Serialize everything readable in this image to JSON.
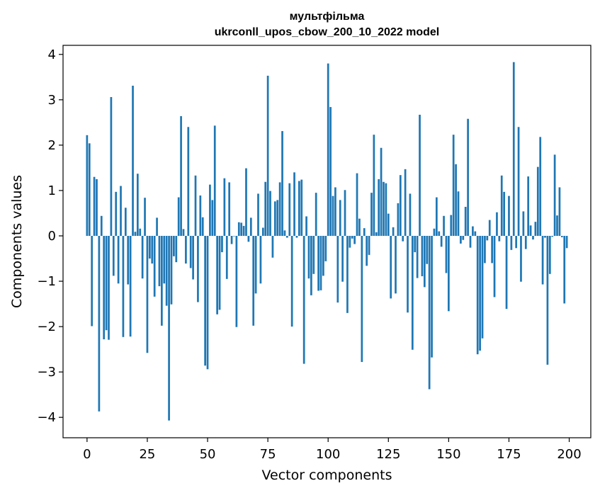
{
  "chart_data": {
    "type": "bar",
    "title_line1": "мультфільма",
    "title_line2": "ukrconll_upos_cbow_200_10_2022 model",
    "xlabel": "Vector components",
    "ylabel": "Components values",
    "xlim": [
      -9.95,
      208.95
    ],
    "ylim": [
      -4.45,
      4.2
    ],
    "xticks": [
      0,
      25,
      50,
      75,
      100,
      125,
      150,
      175,
      200
    ],
    "yticks": [
      -4,
      -3,
      -2,
      -1,
      0,
      1,
      2,
      3,
      4
    ],
    "xtick_labels": [
      "0",
      "25",
      "50",
      "75",
      "100",
      "125",
      "150",
      "175",
      "200"
    ],
    "ytick_labels": [
      "−4",
      "−3",
      "−2",
      "−1",
      "0",
      "1",
      "2",
      "3",
      "4"
    ],
    "bar_color": "#1f77b4",
    "grid": false,
    "legend": "none",
    "values": [
      2.22,
      2.04,
      -1.99,
      1.3,
      1.25,
      -3.87,
      0.44,
      -2.28,
      -2.08,
      -2.29,
      3.06,
      -0.88,
      0.97,
      -1.05,
      1.1,
      -2.23,
      0.62,
      -1.07,
      -2.22,
      3.31,
      0.09,
      1.37,
      0.16,
      -0.94,
      0.84,
      -2.58,
      -0.5,
      -0.61,
      -1.34,
      0.4,
      -1.11,
      -1.98,
      -1.05,
      -1.54,
      -4.07,
      -1.51,
      -0.45,
      -0.58,
      0.85,
      2.64,
      0.15,
      -0.61,
      2.4,
      -0.71,
      -0.96,
      1.33,
      -1.46,
      0.89,
      0.41,
      -2.86,
      -2.94,
      1.13,
      0.79,
      2.43,
      -1.73,
      -1.63,
      -0.36,
      1.27,
      -0.95,
      1.18,
      -0.18,
      -0.01,
      -2.01,
      0.3,
      0.29,
      0.22,
      1.49,
      -0.13,
      0.4,
      -1.98,
      -1.27,
      0.93,
      -1.05,
      0.18,
      1.19,
      3.53,
      0.99,
      -0.48,
      0.76,
      0.79,
      1.18,
      2.31,
      0.12,
      -0.04,
      1.16,
      -2.0,
      1.4,
      -0.04,
      1.21,
      1.24,
      -2.82,
      0.43,
      -0.94,
      -1.31,
      -0.84,
      0.95,
      -1.21,
      -1.2,
      -0.88,
      -0.56,
      3.8,
      2.84,
      0.88,
      1.07,
      -1.47,
      0.79,
      -1.01,
      1.01,
      -1.7,
      -0.26,
      -0.06,
      -0.18,
      1.38,
      0.38,
      -2.78,
      0.17,
      -0.66,
      -0.42,
      0.95,
      2.23,
      0.08,
      1.25,
      1.94,
      1.19,
      1.16,
      0.49,
      -1.38,
      0.19,
      -1.27,
      0.72,
      1.34,
      -0.12,
      1.47,
      -1.69,
      0.93,
      -2.51,
      -0.36,
      -0.93,
      2.67,
      -0.89,
      -1.13,
      -0.62,
      -3.38,
      -2.68,
      0.16,
      0.85,
      0.1,
      -0.24,
      0.44,
      -0.82,
      -1.66,
      0.46,
      2.23,
      1.58,
      0.98,
      -0.17,
      -0.09,
      0.64,
      2.58,
      -0.26,
      0.21,
      0.1,
      -2.61,
      -2.53,
      -2.26,
      -0.6,
      -0.1,
      0.35,
      -0.6,
      -1.35,
      0.52,
      -0.12,
      1.33,
      0.97,
      -1.61,
      0.88,
      -0.31,
      3.83,
      -0.27,
      2.4,
      -1.01,
      0.54,
      -0.29,
      1.31,
      0.23,
      -0.08,
      0.31,
      1.52,
      2.18,
      -1.07,
      -0.04,
      -2.84,
      -0.84,
      -0.02,
      1.79,
      0.45,
      1.07,
      -0.03,
      -1.49,
      -0.27
    ]
  }
}
